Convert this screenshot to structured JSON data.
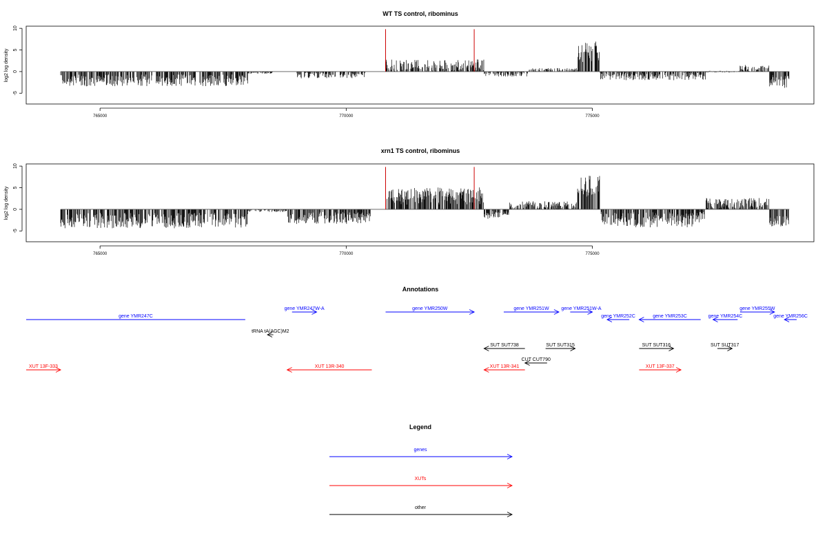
{
  "chart_data": [
    {
      "type": "bar",
      "title": "WT TS control, ribominus",
      "ylabel": "log2 log density",
      "xlim": [
        763500,
        779500
      ],
      "ylim": [
        -7.5,
        10.5
      ],
      "xticks": [
        765000,
        770000,
        775000
      ],
      "xtick_labels": [
        "765000",
        "770000",
        "775000"
      ],
      "yticks": [
        -5,
        0,
        5,
        10
      ],
      "ytick_labels": [
        "-5",
        "0",
        "5",
        "10"
      ],
      "baseline": [
        764200,
        779000
      ],
      "markers": [
        770800,
        772600
      ],
      "marker_color": "#cc0000",
      "bar_color": "#000000",
      "profile": [
        {
          "from": 764200,
          "to": 768000,
          "mean": -2.0,
          "spread": 1.4
        },
        {
          "from": 768000,
          "to": 768500,
          "mean": -0.3,
          "spread": 0.2
        },
        {
          "from": 769000,
          "to": 770400,
          "mean": -0.8,
          "spread": 0.8
        },
        {
          "from": 770800,
          "to": 772800,
          "mean": 1.4,
          "spread": 1.4
        },
        {
          "from": 772800,
          "to": 773700,
          "mean": -0.6,
          "spread": 0.6
        },
        {
          "from": 773700,
          "to": 774700,
          "mean": 0.4,
          "spread": 0.4
        },
        {
          "from": 774700,
          "to": 775150,
          "mean": 4.6,
          "spread": 2.4
        },
        {
          "from": 775150,
          "to": 777300,
          "mean": -1.0,
          "spread": 1.0
        },
        {
          "from": 777300,
          "to": 778000,
          "mean": 0.0,
          "spread": 0.2
        },
        {
          "from": 778000,
          "to": 778600,
          "mean": 0.8,
          "spread": 0.8
        },
        {
          "from": 778600,
          "to": 779000,
          "mean": -2.3,
          "spread": 1.5
        }
      ]
    },
    {
      "type": "bar",
      "title": "xrn1 TS control, ribominus",
      "ylabel": "log2 log density",
      "xlim": [
        763500,
        779500
      ],
      "ylim": [
        -7.5,
        10.5
      ],
      "xticks": [
        765000,
        770000,
        775000
      ],
      "xtick_labels": [
        "765000",
        "770000",
        "775000"
      ],
      "yticks": [
        -5,
        0,
        5,
        10
      ],
      "ytick_labels": [
        "-5",
        "0",
        "5",
        "10"
      ],
      "baseline": [
        764200,
        779000
      ],
      "markers": [
        770800,
        772600
      ],
      "marker_color": "#cc0000",
      "bar_color": "#000000",
      "profile": [
        {
          "from": 764200,
          "to": 768000,
          "mean": -2.6,
          "spread": 1.8
        },
        {
          "from": 768000,
          "to": 768800,
          "mean": -0.3,
          "spread": 0.3
        },
        {
          "from": 768800,
          "to": 770500,
          "mean": -2.0,
          "spread": 1.4
        },
        {
          "from": 770800,
          "to": 772800,
          "mean": 3.1,
          "spread": 2.0
        },
        {
          "from": 772800,
          "to": 773300,
          "mean": -1.2,
          "spread": 1.0
        },
        {
          "from": 773300,
          "to": 774700,
          "mean": 1.0,
          "spread": 0.9
        },
        {
          "from": 774700,
          "to": 775150,
          "mean": 5.2,
          "spread": 2.6
        },
        {
          "from": 775150,
          "to": 777300,
          "mean": -2.4,
          "spread": 1.8
        },
        {
          "from": 777300,
          "to": 778600,
          "mean": 1.4,
          "spread": 1.2
        },
        {
          "from": 778600,
          "to": 779000,
          "mean": -2.6,
          "spread": 1.4
        }
      ]
    }
  ],
  "annotations": {
    "title": "Annotations",
    "xlim": [
      763500,
      779500
    ],
    "items": [
      {
        "label": "gene YMR247C",
        "start": 763500,
        "end": 767950,
        "row": 1,
        "dir": "none",
        "color": "#0000ff"
      },
      {
        "label": "gene YMR247W-A",
        "start": 768900,
        "end": 769400,
        "row": 0,
        "dir": "right",
        "color": "#0000ff"
      },
      {
        "label": "gene YMR250W",
        "start": 770800,
        "end": 772600,
        "row": 0,
        "dir": "right",
        "color": "#0000ff"
      },
      {
        "label": "gene YMR251W",
        "start": 773200,
        "end": 774320,
        "row": 0,
        "dir": "right",
        "color": "#0000ff"
      },
      {
        "label": "gene YMR251W-A",
        "start": 774550,
        "end": 775000,
        "row": 0,
        "dir": "right",
        "color": "#0000ff"
      },
      {
        "label": "gene YMR252C",
        "start": 775300,
        "end": 775750,
        "row": 1,
        "dir": "left",
        "color": "#0000ff"
      },
      {
        "label": "gene YMR253C",
        "start": 775950,
        "end": 777200,
        "row": 1,
        "dir": "left",
        "color": "#0000ff"
      },
      {
        "label": "gene YMR254C",
        "start": 777450,
        "end": 777950,
        "row": 1,
        "dir": "left",
        "color": "#0000ff"
      },
      {
        "label": "gene YMR255W",
        "start": 778000,
        "end": 778700,
        "row": 0,
        "dir": "right",
        "color": "#0000ff"
      },
      {
        "label": "gene YMR256C",
        "start": 778900,
        "end": 779150,
        "row": 1,
        "dir": "left",
        "color": "#0000ff"
      },
      {
        "label": "tRNA tA(AGC)M2",
        "start": 768400,
        "end": 768520,
        "row": 2,
        "dir": "left",
        "color": "#000000"
      },
      {
        "label": "SUT SUT738",
        "start": 772800,
        "end": 773630,
        "row": 3,
        "dir": "left",
        "color": "#000000"
      },
      {
        "label": "SUT SUT315",
        "start": 774050,
        "end": 774650,
        "row": 3,
        "dir": "right",
        "color": "#000000"
      },
      {
        "label": "SUT SUT316",
        "start": 775950,
        "end": 776650,
        "row": 3,
        "dir": "right",
        "color": "#000000"
      },
      {
        "label": "SUT SUT317",
        "start": 777540,
        "end": 777840,
        "row": 3,
        "dir": "right",
        "color": "#000000"
      },
      {
        "label": "CUT CUT790",
        "start": 773630,
        "end": 774080,
        "row": 4,
        "dir": "left",
        "color": "#000000"
      },
      {
        "label": "XUT 13F-333",
        "start": 763500,
        "end": 764200,
        "row": 5,
        "dir": "right",
        "color": "#ff0000"
      },
      {
        "label": "XUT 13R-340",
        "start": 768800,
        "end": 770520,
        "row": 5,
        "dir": "left",
        "color": "#ff0000"
      },
      {
        "label": "XUT 13R-341",
        "start": 772800,
        "end": 773630,
        "row": 5,
        "dir": "left",
        "color": "#ff0000"
      },
      {
        "label": "XUT 13F-337",
        "start": 775950,
        "end": 776800,
        "row": 5,
        "dir": "right",
        "color": "#ff0000"
      }
    ]
  },
  "legend": {
    "title": "Legend",
    "items": [
      {
        "label": "genes",
        "color": "#0000ff"
      },
      {
        "label": "XUTs",
        "color": "#ff0000"
      },
      {
        "label": "other",
        "color": "#000000"
      }
    ]
  }
}
